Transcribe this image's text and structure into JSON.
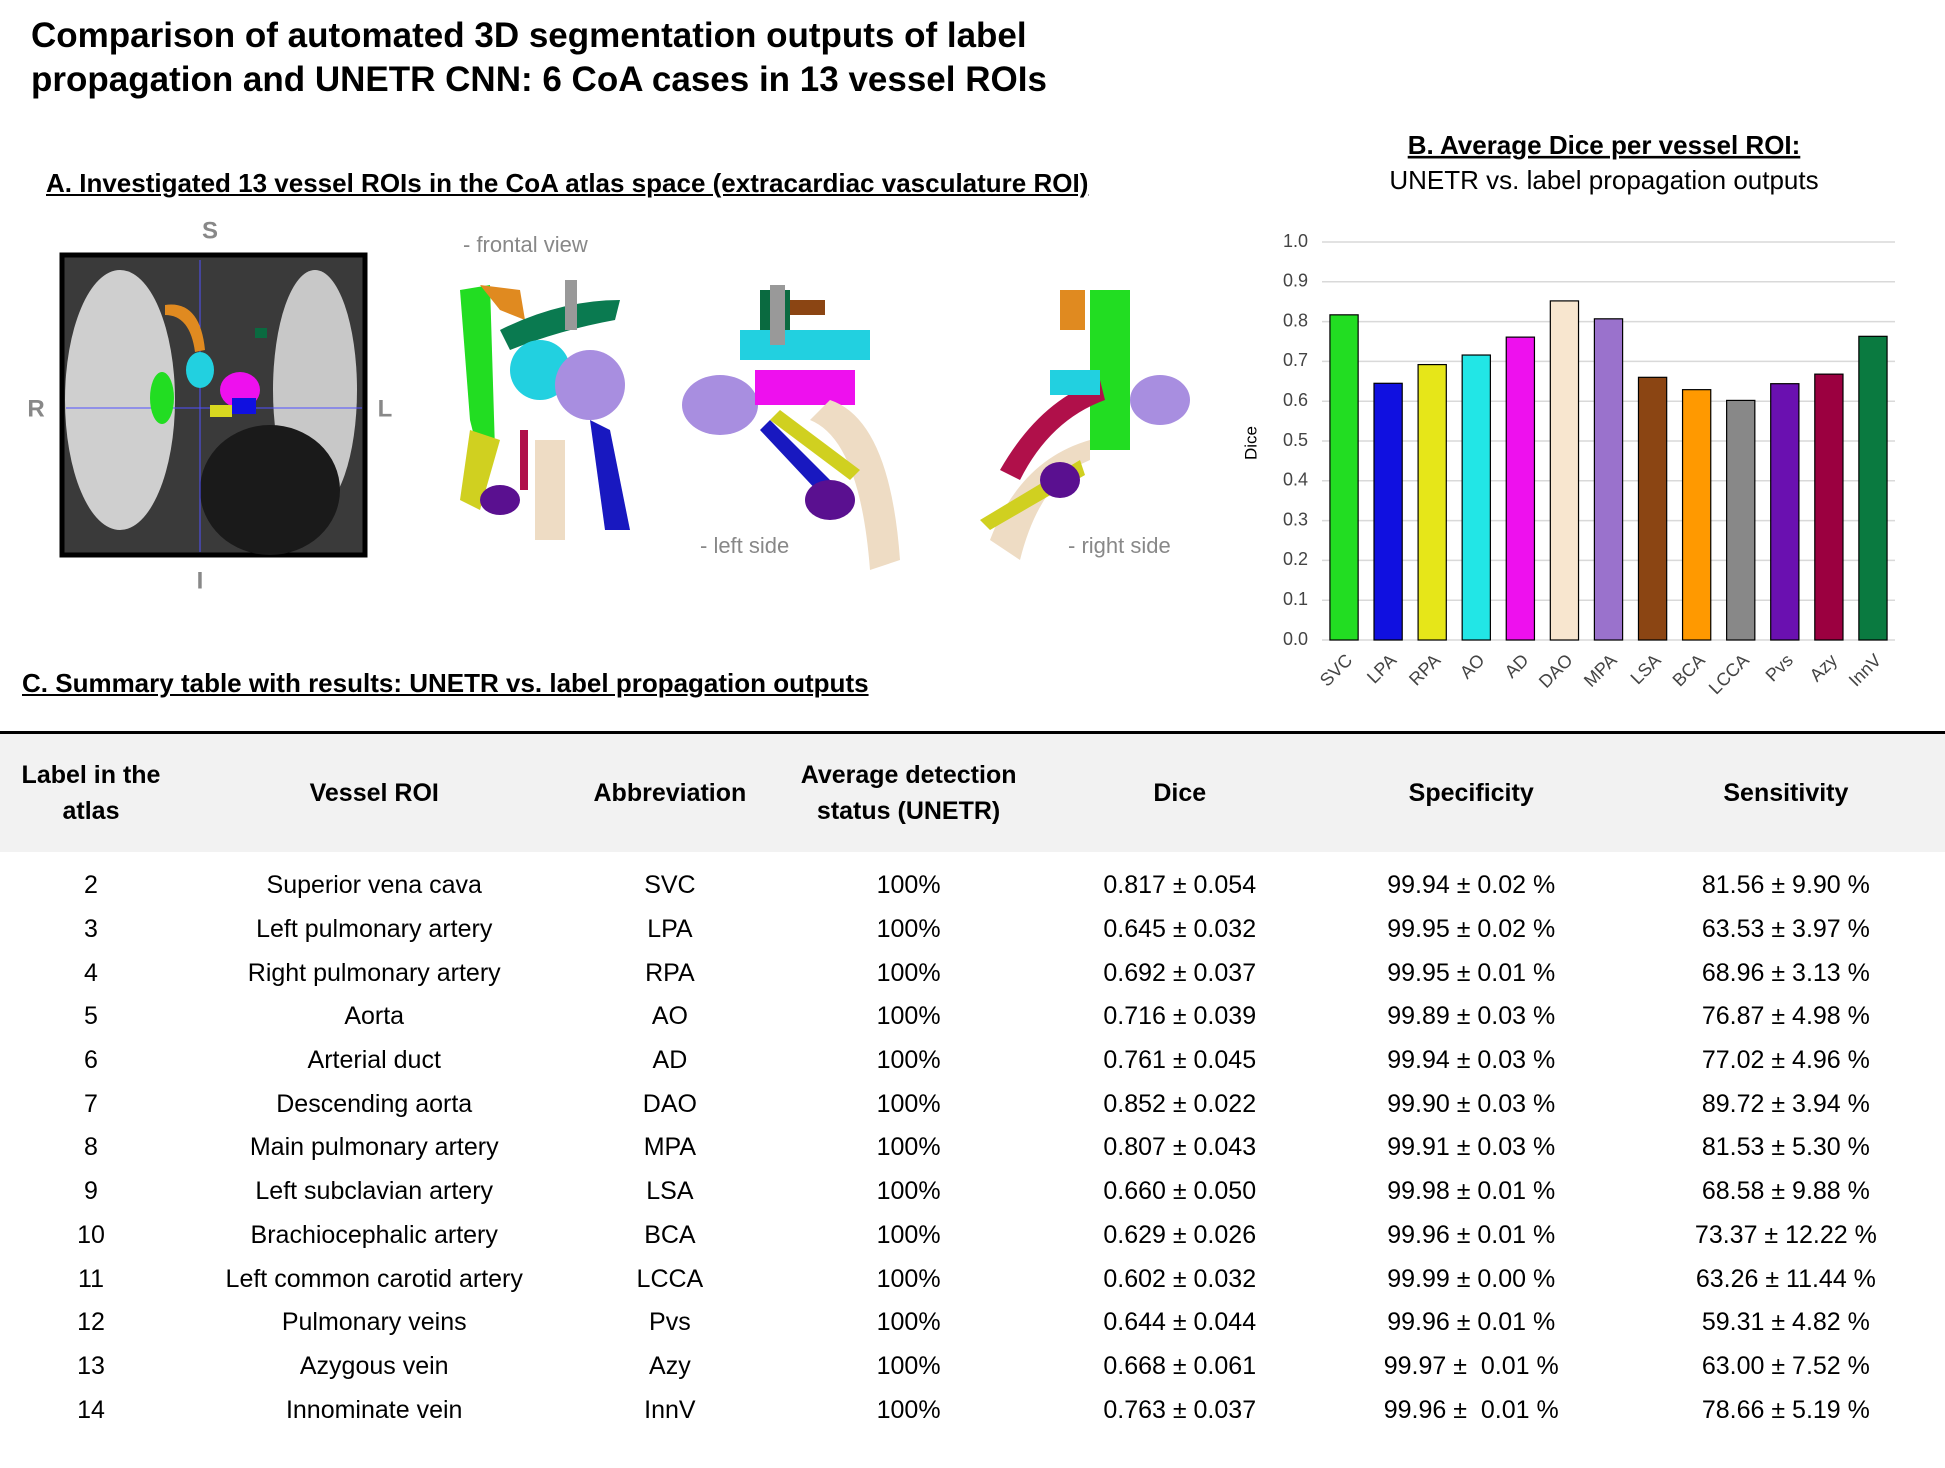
{
  "title": "Comparison of automated 3D segmentation outputs of label propagation and UNETR CNN: 6 CoA cases in 13 vessel ROIs",
  "panel_a": {
    "heading": "A. Investigated 13 vessel ROIs in the CoA atlas space (extracardiac vasculature ROI)",
    "orientation_labels": [
      "S",
      "R",
      "L",
      "I"
    ],
    "view_labels": [
      "- frontal view",
      "- left side",
      "- right side"
    ]
  },
  "chart_data": {
    "type": "bar",
    "title": "B. Average Dice per vessel ROI:",
    "subtitle": "UNETR vs. label propagation outputs",
    "y_label": "Dice",
    "categories": [
      "SVC",
      "LPA",
      "RPA",
      "AO",
      "AD",
      "DAO",
      "MPA",
      "LSA",
      "BCA",
      "LCCA",
      "Pvs",
      "Azy",
      "InnV"
    ],
    "values": [
      0.817,
      0.645,
      0.692,
      0.716,
      0.761,
      0.852,
      0.807,
      0.66,
      0.629,
      0.602,
      0.644,
      0.668,
      0.763
    ],
    "colors": [
      "#22dd22",
      "#1010e0",
      "#e6e619",
      "#22e6e6",
      "#ee10ee",
      "#f8e6cf",
      "#9a72cc",
      "#8b4513",
      "#ff9900",
      "#888888",
      "#6a10b0",
      "#9b0040",
      "#0a7a40"
    ],
    "ylim": [
      0,
      1
    ],
    "yticks": [
      {
        "value": 0,
        "label": "0.0"
      },
      0.1,
      0.2,
      0.3,
      0.4,
      0.5,
      0.6,
      0.7,
      0.8,
      0.9,
      {
        "value": 1,
        "label": "1.0"
      }
    ],
    "grid": true
  },
  "table": {
    "heading": "C. Summary table with results: UNETR vs. label propagation outputs",
    "columns": [
      "Label in the atlas",
      "Vessel ROI",
      "Abbreviation",
      "Average detection status (UNETR)",
      "Dice",
      "Specificity",
      "Sensitivity"
    ],
    "rows": [
      [
        "2",
        "Superior vena cava",
        "SVC",
        "100%",
        "0.817 ± 0.054",
        "99.94 ± 0.02 %",
        "81.56 ± 9.90 %"
      ],
      [
        "3",
        "Left pulmonary artery",
        "LPA",
        "100%",
        "0.645 ± 0.032",
        "99.95 ± 0.02 %",
        "63.53 ± 3.97 %"
      ],
      [
        "4",
        "Right pulmonary artery",
        "RPA",
        "100%",
        "0.692 ± 0.037",
        "99.95 ± 0.01 %",
        "68.96 ± 3.13 %"
      ],
      [
        "5",
        "Aorta",
        "AO",
        "100%",
        "0.716 ± 0.039",
        "99.89 ± 0.03 %",
        "76.87 ± 4.98 %"
      ],
      [
        "6",
        "Arterial duct",
        "AD",
        "100%",
        "0.761 ± 0.045",
        "99.94 ± 0.03 %",
        "77.02 ± 4.96 %"
      ],
      [
        "7",
        "Descending aorta",
        "DAO",
        "100%",
        "0.852 ± 0.022",
        "99.90 ± 0.03 %",
        "89.72 ± 3.94 %"
      ],
      [
        "8",
        "Main pulmonary artery",
        "MPA",
        "100%",
        "0.807 ± 0.043",
        "99.91 ± 0.03 %",
        "81.53 ± 5.30 %"
      ],
      [
        "9",
        "Left subclavian artery",
        "LSA",
        "100%",
        "0.660 ± 0.050",
        "99.98 ± 0.01 %",
        "68.58 ± 9.88 %"
      ],
      [
        "10",
        "Brachiocephalic artery",
        "BCA",
        "100%",
        "0.629 ± 0.026",
        "99.96 ± 0.01 %",
        "73.37 ± 12.22 %"
      ],
      [
        "11",
        "Left common carotid artery",
        "LCCA",
        "100%",
        "0.602 ± 0.032",
        "99.99 ± 0.00 %",
        "63.26 ± 11.44 %"
      ],
      [
        "12",
        "Pulmonary veins",
        "Pvs",
        "100%",
        "0.644 ± 0.044",
        "99.96 ± 0.01 %",
        "59.31 ± 4.82 %"
      ],
      [
        "13",
        "Azygous vein",
        "Azy",
        "100%",
        "0.668 ± 0.061",
        "99.97 ±  0.01 %",
        "63.00 ± 7.52 %"
      ],
      [
        "14",
        "Innominate vein",
        "InnV",
        "100%",
        "0.763 ± 0.037",
        "99.96 ±  0.01 %",
        "78.66 ± 5.19 %"
      ]
    ]
  }
}
